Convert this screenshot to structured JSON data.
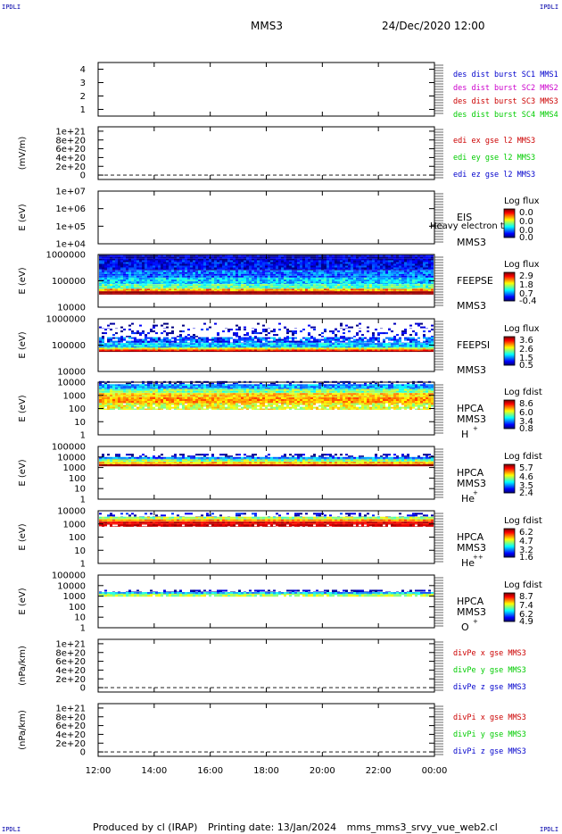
{
  "corners": [
    "IPDLI",
    "IPDLI",
    "IPDLI",
    "IPDLI"
  ],
  "header": {
    "spacecraft": "MMS3",
    "datetime": "24/Dec/2020 12:00"
  },
  "footer": {
    "produced": "Produced by cl (IRAP)",
    "printing": "Printing date: 13/Jan/2024",
    "file": "mms_mms3_srvy_vue_web2.cl"
  },
  "colors": {
    "blue": "#0000cc",
    "magenta": "#cc00cc",
    "red": "#cc0000",
    "green": "#00cc00"
  },
  "chart_data": [
    {
      "type": "line",
      "id": "p1",
      "ylim": [
        0.5,
        4.5
      ],
      "ticks": [
        "1",
        "2",
        "3",
        "4"
      ],
      "tick_values": [
        1,
        2,
        3,
        4
      ],
      "series": [],
      "legend": [
        {
          "text": "des dist burst SC1 MMS1",
          "color": "#0000cc"
        },
        {
          "text": "des dist burst SC2 MMS2",
          "color": "#cc00cc"
        },
        {
          "text": "des dist burst SC3 MMS3",
          "color": "#cc0000"
        },
        {
          "text": "des dist burst SC4 MMS4",
          "color": "#00cc00"
        }
      ]
    },
    {
      "type": "line",
      "id": "p2",
      "ylabel": "(mV/m)",
      "ylim": [
        -1e+20,
        1.1e+21
      ],
      "ticks": [
        "0",
        "2e+20",
        "4e+20",
        "6e+20",
        "8e+20",
        "1e+21"
      ],
      "tick_values": [
        0,
        2e+20,
        4e+20,
        6e+20,
        8e+20,
        1e+21
      ],
      "zero_line": true,
      "series": [],
      "legend": [
        {
          "text": "edi ex gse l2 MMS3",
          "color": "#cc0000"
        },
        {
          "text": "edi ey gse l2 MMS3",
          "color": "#00cc00"
        },
        {
          "text": "edi ez gse l2 MMS3",
          "color": "#0000cc"
        }
      ]
    },
    {
      "type": "heatmap",
      "id": "p3",
      "ylabel": "E (eV)",
      "ylim": [
        10000,
        10000000
      ],
      "yscale": "log",
      "ticks": [
        "1e+04",
        "1e+05",
        "1e+06",
        "1e+07"
      ],
      "tick_values": [
        10000,
        100000,
        1000000,
        10000000
      ],
      "instrument": [
        "EIS",
        "MMS3"
      ],
      "extra_label": "Heavy electron tof",
      "colorbar": {
        "title": "Log flux",
        "labels": [
          "0.0",
          "0.0",
          "0.0",
          "0.0"
        ]
      },
      "bands": []
    },
    {
      "type": "heatmap",
      "id": "p4",
      "ylabel": "E (eV)",
      "ylim": [
        10000,
        1000000
      ],
      "yscale": "log",
      "ticks": [
        "10000",
        "100000",
        "1000000"
      ],
      "tick_values": [
        10000,
        100000,
        1000000
      ],
      "instrument": [
        "FEEPSE",
        "MMS3"
      ],
      "colorbar": {
        "title": "Log flux",
        "labels": [
          "2.9",
          "1.8",
          "0.7",
          "-0.4"
        ]
      },
      "bands": [
        {
          "lo": 600000,
          "hi": 950000,
          "level": 0.05,
          "noise": 0.12
        },
        {
          "lo": 250000,
          "hi": 600000,
          "level": 0.12,
          "noise": 0.12
        },
        {
          "lo": 130000,
          "hi": 250000,
          "level": 0.22,
          "noise": 0.12
        },
        {
          "lo": 75000,
          "hi": 130000,
          "level": 0.33,
          "noise": 0.12
        },
        {
          "lo": 50000,
          "hi": 75000,
          "level": 0.45,
          "noise": 0.12
        },
        {
          "lo": 40000,
          "hi": 50000,
          "level": 0.72,
          "noise": 0.12
        },
        {
          "lo": 30000,
          "hi": 40000,
          "level": 0.97,
          "noise": 0.02
        }
      ]
    },
    {
      "type": "heatmap",
      "id": "p5",
      "ylabel": "E (eV)",
      "ylim": [
        10000,
        1000000
      ],
      "yscale": "log",
      "ticks": [
        "10000",
        "100000",
        "1000000"
      ],
      "tick_values": [
        10000,
        100000,
        1000000
      ],
      "instrument": [
        "FEEPSI",
        "MMS3"
      ],
      "colorbar": {
        "title": "Log flux",
        "labels": [
          "3.6",
          "2.6",
          "1.5",
          "0.5"
        ]
      },
      "bands": [
        {
          "lo": 420000,
          "hi": 700000,
          "level": 0.05,
          "noise": 0.08,
          "fill": 0.12
        },
        {
          "lo": 200000,
          "hi": 420000,
          "level": 0.08,
          "noise": 0.1,
          "fill": 0.25
        },
        {
          "lo": 120000,
          "hi": 200000,
          "level": 0.2,
          "noise": 0.15,
          "fill": 0.8
        },
        {
          "lo": 80000,
          "hi": 120000,
          "level": 0.32,
          "noise": 0.12
        },
        {
          "lo": 68000,
          "hi": 80000,
          "level": 0.6,
          "noise": 0.1
        },
        {
          "lo": 60000,
          "hi": 68000,
          "level": 0.85,
          "noise": 0.08
        },
        {
          "lo": 55000,
          "hi": 60000,
          "level": 0.98,
          "noise": 0.02
        }
      ]
    },
    {
      "type": "heatmap",
      "id": "p6",
      "ylabel": "E (eV)",
      "ylim": [
        1,
        10000
      ],
      "yscale": "log",
      "ticks": [
        "1",
        "10",
        "100",
        "1000",
        "10000"
      ],
      "tick_values": [
        1,
        10,
        100,
        1000,
        10000
      ],
      "instrument": [
        "HPCA",
        "MMS3",
        "H",
        "+"
      ],
      "colorbar": {
        "title": "Log fdist",
        "labels": [
          "8.6",
          "6.0",
          "3.4",
          "0.8"
        ]
      },
      "bands": [
        {
          "lo": 7000,
          "hi": 12000,
          "level": 0.08,
          "noise": 0.1,
          "fill": 0.35
        },
        {
          "lo": 3000,
          "hi": 7000,
          "level": 0.28,
          "noise": 0.12
        },
        {
          "lo": 1500,
          "hi": 3000,
          "level": 0.5,
          "noise": 0.12
        },
        {
          "lo": 700,
          "hi": 1500,
          "level": 0.66,
          "noise": 0.1
        },
        {
          "lo": 250,
          "hi": 700,
          "level": 0.72,
          "noise": 0.1
        },
        {
          "lo": 80,
          "hi": 250,
          "level": 0.6,
          "noise": 0.12,
          "fill": 0.9
        }
      ]
    },
    {
      "type": "heatmap",
      "id": "p7",
      "ylabel": "E (eV)",
      "ylim": [
        1,
        100000
      ],
      "yscale": "log",
      "ticks": [
        "1",
        "10",
        "100",
        "1000",
        "10000",
        "100000"
      ],
      "tick_values": [
        1,
        10,
        100,
        1000,
        10000,
        100000
      ],
      "instrument": [
        "HPCA",
        "MMS3",
        "He",
        "+"
      ],
      "colorbar": {
        "title": "Log fdist",
        "labels": [
          "5.7",
          "4.6",
          "3.5",
          "2.4"
        ]
      },
      "bands": [
        {
          "lo": 10000,
          "hi": 20000,
          "level": 0.05,
          "noise": 0.08,
          "fill": 0.4
        },
        {
          "lo": 6000,
          "hi": 10000,
          "level": 0.25,
          "noise": 0.12
        },
        {
          "lo": 3500,
          "hi": 6000,
          "level": 0.5,
          "noise": 0.12
        },
        {
          "lo": 2000,
          "hi": 3500,
          "level": 0.68,
          "noise": 0.1
        },
        {
          "lo": 1300,
          "hi": 2000,
          "level": 0.98,
          "noise": 0.02
        }
      ]
    },
    {
      "type": "heatmap",
      "id": "p8",
      "ylabel": "E (eV)",
      "ylim": [
        1,
        10000
      ],
      "yscale": "log",
      "ticks": [
        "1",
        "10",
        "100",
        "1000",
        "10000"
      ],
      "tick_values": [
        1,
        10,
        100,
        1000,
        10000
      ],
      "instrument": [
        "HPCA",
        "MMS3",
        "He",
        "++"
      ],
      "colorbar": {
        "title": "Log fdist",
        "labels": [
          "6.2",
          "4.7",
          "3.2",
          "1.6"
        ]
      },
      "bands": [
        {
          "lo": 3500,
          "hi": 7000,
          "level": 0.1,
          "noise": 0.1,
          "fill": 0.3
        },
        {
          "lo": 2200,
          "hi": 3500,
          "level": 0.55,
          "noise": 0.12
        },
        {
          "lo": 1500,
          "hi": 2200,
          "level": 0.75,
          "noise": 0.08
        },
        {
          "lo": 900,
          "hi": 1500,
          "level": 0.9,
          "noise": 0.06
        },
        {
          "lo": 600,
          "hi": 900,
          "level": 0.93,
          "noise": 0.05,
          "fill": 0.85
        }
      ]
    },
    {
      "type": "heatmap",
      "id": "p9",
      "ylabel": "E (eV)",
      "ylim": [
        1,
        100000
      ],
      "yscale": "log",
      "ticks": [
        "1",
        "10",
        "100",
        "1000",
        "10000",
        "100000"
      ],
      "tick_values": [
        1,
        10,
        100,
        1000,
        10000,
        100000
      ],
      "instrument": [
        "HPCA",
        "MMS3",
        "O",
        "+"
      ],
      "colorbar": {
        "title": "Log fdist",
        "labels": [
          "8.7",
          "7.4",
          "6.2",
          "4.9"
        ]
      },
      "bands": [
        {
          "lo": 2400,
          "hi": 4000,
          "level": 0.05,
          "noise": 0.06,
          "fill": 0.45
        },
        {
          "lo": 1700,
          "hi": 2400,
          "level": 0.3,
          "noise": 0.12
        },
        {
          "lo": 1300,
          "hi": 1700,
          "level": 0.5,
          "noise": 0.1
        },
        {
          "lo": 900,
          "hi": 1300,
          "level": 0.55,
          "noise": 0.1,
          "fill": 0.9
        }
      ]
    },
    {
      "type": "line",
      "id": "p10",
      "ylabel": "(nPa/km)",
      "ylim": [
        -1e+20,
        1.1e+21
      ],
      "ticks": [
        "0",
        "2e+20",
        "4e+20",
        "6e+20",
        "8e+20",
        "1e+21"
      ],
      "tick_values": [
        0,
        2e+20,
        4e+20,
        6e+20,
        8e+20,
        1e+21
      ],
      "zero_line": true,
      "series": [],
      "legend": [
        {
          "text": "divPe x gse MMS3",
          "color": "#cc0000"
        },
        {
          "text": "divPe y gse MMS3",
          "color": "#00cc00"
        },
        {
          "text": "divPe z gse MMS3",
          "color": "#0000cc"
        }
      ]
    },
    {
      "type": "line",
      "id": "p11",
      "ylabel": "(nPa/km)",
      "ylim": [
        -1e+20,
        1.1e+21
      ],
      "ticks": [
        "0",
        "2e+20",
        "4e+20",
        "6e+20",
        "8e+20",
        "1e+21"
      ],
      "tick_values": [
        0,
        2e+20,
        4e+20,
        6e+20,
        8e+20,
        1e+21
      ],
      "zero_line": true,
      "series": [],
      "legend": [
        {
          "text": "divPi x gse MMS3",
          "color": "#cc0000"
        },
        {
          "text": "divPi y gse MMS3",
          "color": "#00cc00"
        },
        {
          "text": "divPi z gse MMS3",
          "color": "#0000cc"
        }
      ]
    }
  ],
  "xaxis": {
    "range_hours": [
      12,
      24
    ],
    "tick_labels": [
      "12:00",
      "14:00",
      "16:00",
      "18:00",
      "20:00",
      "22:00",
      "00:00"
    ],
    "tick_values_hours": [
      12,
      14,
      16,
      18,
      20,
      22,
      24
    ]
  }
}
